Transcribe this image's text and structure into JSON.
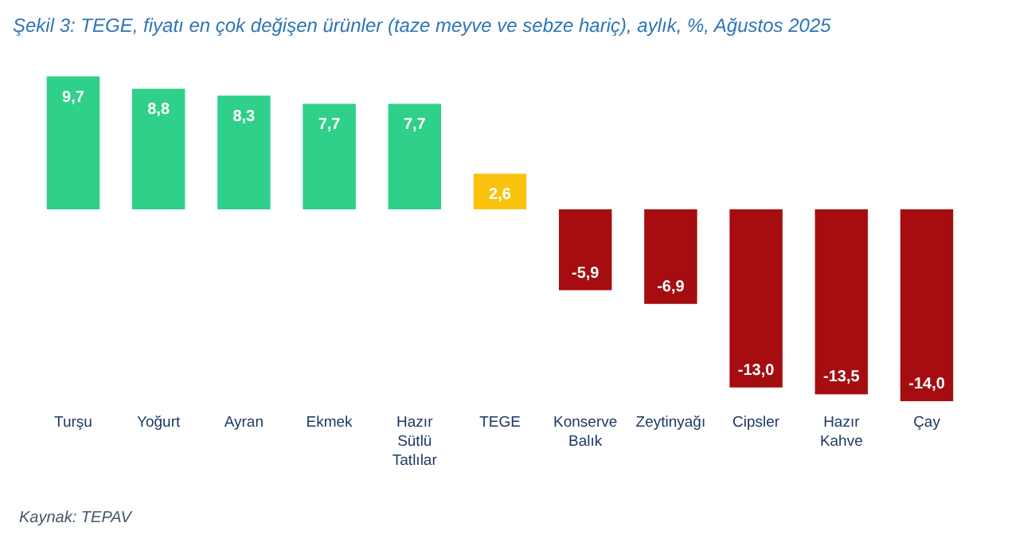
{
  "chart_data": {
    "type": "bar",
    "title": "Şekil 3: TEGE, fiyatı en çok değişen ürünler (taze meyve ve sebze hariç), aylık, %, Ağustos 2025",
    "categories": [
      "Turşu",
      "Yoğurt",
      "Ayran",
      "Ekmek",
      "Hazır Sütlü Tatlılar",
      "TEGE",
      "Konserve Balık",
      "Zeytinyağı",
      "Cipsler",
      "Hazır Kahve",
      "Çay"
    ],
    "values": [
      9.7,
      8.8,
      8.3,
      7.7,
      7.7,
      2.6,
      -5.9,
      -6.9,
      -13.0,
      -13.5,
      -14.0
    ],
    "colors": [
      "#2fd08a",
      "#2fd08a",
      "#2fd08a",
      "#2fd08a",
      "#2fd08a",
      "#f9c20f",
      "#a50d10",
      "#a50d10",
      "#a50d10",
      "#a50d10",
      "#a50d10"
    ],
    "value_labels": [
      "9,7",
      "8,8",
      "8,3",
      "7,7",
      "7,7",
      "2,6",
      "-5,9",
      "-6,9",
      "-13,0",
      "-13,5",
      "-14,0"
    ],
    "tick_labels": "x",
    "annotations": [
      "Kaynak: TEPAV"
    ]
  }
}
